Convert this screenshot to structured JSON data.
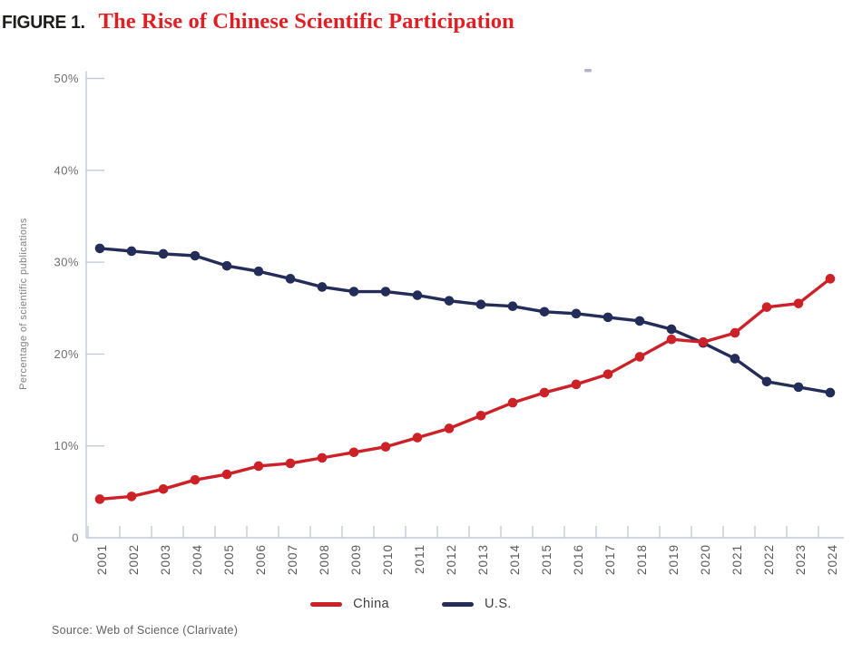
{
  "figure": {
    "label": "FIGURE 1.",
    "title": "The Rise of Chinese Scientific Participation"
  },
  "chart_data": {
    "type": "line",
    "title": "The Rise of Chinese Scientific Participation",
    "xlabel": "",
    "ylabel": "Percentage of scientific publications",
    "x": [
      2001,
      2002,
      2003,
      2004,
      2005,
      2006,
      2007,
      2008,
      2009,
      2010,
      2011,
      2012,
      2013,
      2014,
      2015,
      2016,
      2017,
      2018,
      2019,
      2020,
      2021,
      2022,
      2023,
      2024
    ],
    "series": [
      {
        "name": "China",
        "color": "#cd2128",
        "values": [
          4.2,
          4.5,
          5.3,
          6.3,
          6.9,
          7.8,
          8.1,
          8.7,
          9.3,
          9.9,
          10.9,
          11.9,
          13.3,
          14.7,
          15.8,
          16.7,
          17.8,
          19.7,
          21.6,
          21.3,
          22.3,
          25.1,
          25.5,
          28.2
        ]
      },
      {
        "name": "U.S.",
        "color": "#232d58",
        "values": [
          31.5,
          31.2,
          30.9,
          30.7,
          29.6,
          29.0,
          28.2,
          27.3,
          26.8,
          26.8,
          26.4,
          25.8,
          25.4,
          25.2,
          24.6,
          24.4,
          24.0,
          23.6,
          22.7,
          21.2,
          19.5,
          17.0,
          16.4,
          15.8
        ]
      }
    ],
    "ylim": [
      0,
      50
    ],
    "yticks": {
      "values": [
        0,
        10,
        20,
        30,
        40,
        50
      ],
      "labels": [
        "0",
        "10%",
        "20%",
        "30%",
        "40%",
        "50%"
      ]
    },
    "grid": false,
    "legend_position": "bottom-center",
    "marker": "circle"
  },
  "legend": {
    "items": [
      {
        "label": "China",
        "color": "#cd2128"
      },
      {
        "label": "U.S.",
        "color": "#232d58"
      }
    ]
  },
  "source": "Source: Web of Science (Clarivate)",
  "colors": {
    "title_red": "#e01f24",
    "figure_label": "#1d1d1b",
    "axis_line": "#c6cad9",
    "y_tick_label": "#6d6e71",
    "x_tick_label": "#5a5b5e",
    "axis_title": "#808184",
    "legend_text": "#3f4042",
    "source_text": "#606164",
    "stray_mark": "#9496ad"
  }
}
